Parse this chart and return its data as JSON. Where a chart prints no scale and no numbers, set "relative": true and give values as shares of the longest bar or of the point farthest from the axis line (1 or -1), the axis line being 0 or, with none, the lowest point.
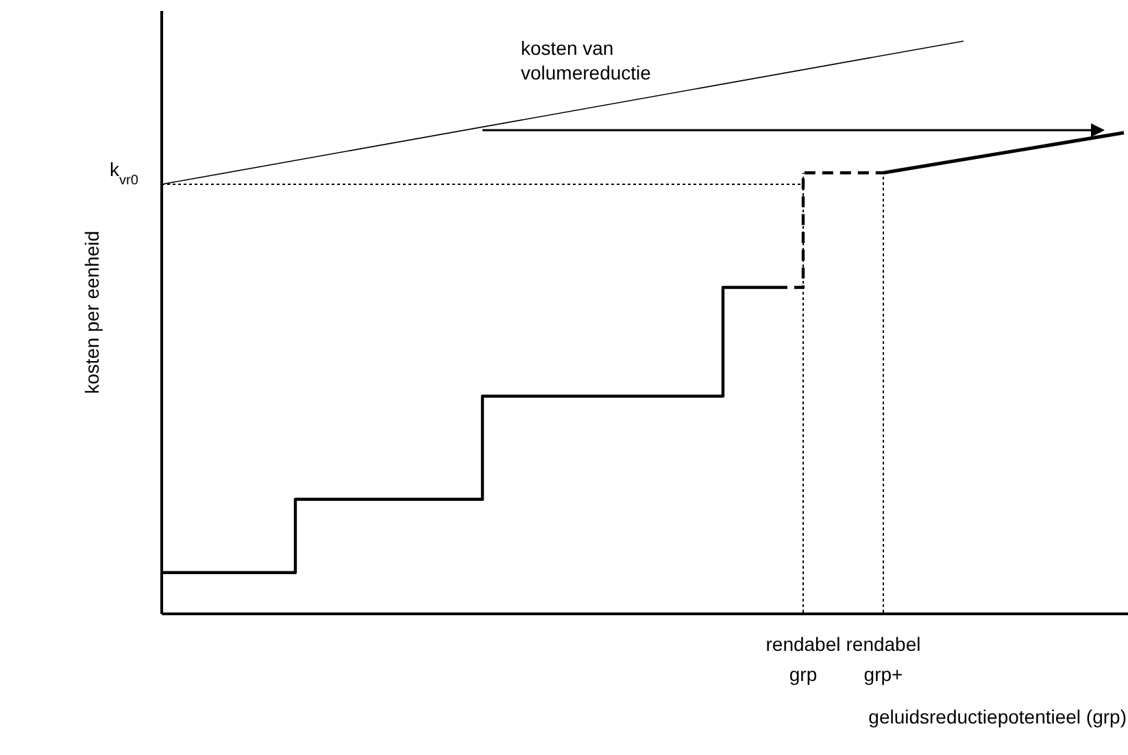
{
  "chart_data": {
    "type": "step",
    "relative": true,
    "categories": [
      null,
      null,
      null,
      null,
      null,
      null,
      null,
      null,
      null,
      null,
      null,
      null,
      null,
      null,
      null,
      null,
      null,
      null,
      null,
      null,
      null,
      null,
      null,
      null,
      null,
      null,
      null,
      null,
      null,
      null,
      null,
      null,
      null,
      null,
      null,
      null,
      null
    ],
    "series": [
      {
        "color": "#000000",
        "values": [
          0.072,
          0.072,
          0.072,
          0.072,
          0.072,
          0.2,
          0.2,
          0.2,
          0.2,
          0.2,
          0.2,
          0.2,
          0.38,
          0.38,
          0.38,
          0.38,
          0.38,
          0.38,
          0.38,
          0.38,
          0.38,
          0.57,
          0.57,
          0.57,
          null,
          null,
          null,
          null,
          null,
          null,
          null,
          null,
          null,
          null,
          null,
          null,
          null
        ]
      },
      {
        "color": "#000000",
        "line_style": "dashed",
        "values": [
          null,
          null,
          null,
          null,
          null,
          null,
          null,
          null,
          null,
          null,
          null,
          null,
          null,
          null,
          null,
          null,
          null,
          null,
          null,
          null,
          null,
          null,
          null,
          0.57,
          0.77,
          0.77,
          0.77,
          0.77,
          null,
          null,
          null,
          null,
          null,
          null,
          null,
          null,
          null
        ]
      },
      {
        "type": "line",
        "color": "#000000",
        "values": [
          null,
          null,
          null,
          null,
          null,
          null,
          null,
          null,
          null,
          null,
          null,
          null,
          null,
          null,
          null,
          null,
          null,
          null,
          null,
          null,
          null,
          null,
          null,
          null,
          null,
          null,
          null,
          0.77,
          null,
          null,
          null,
          null,
          null,
          null,
          null,
          null,
          0.84
        ]
      },
      {
        "type": "line",
        "color": "#000000",
        "values": [
          0.75,
          null,
          null,
          null,
          null,
          null,
          null,
          null,
          null,
          null,
          null,
          null,
          null,
          null,
          null,
          null,
          null,
          null,
          null,
          null,
          null,
          null,
          null,
          null,
          null,
          null,
          null,
          null,
          null,
          null,
          1.0,
          null,
          null,
          null,
          null,
          null,
          null
        ]
      }
    ],
    "ref_lines": [
      {
        "axis": "y",
        "value": 0.75,
        "label": "k$_{vr0}$",
        "line_style": "dotted"
      }
    ],
    "annotations": [
      "kosten van volumereductie",
      "rendabel grp",
      "rendabel grp+"
    ],
    "xlabel": "geluidsreductiepotentieel (grp)",
    "ylabel": "kosten per eenheid"
  }
}
